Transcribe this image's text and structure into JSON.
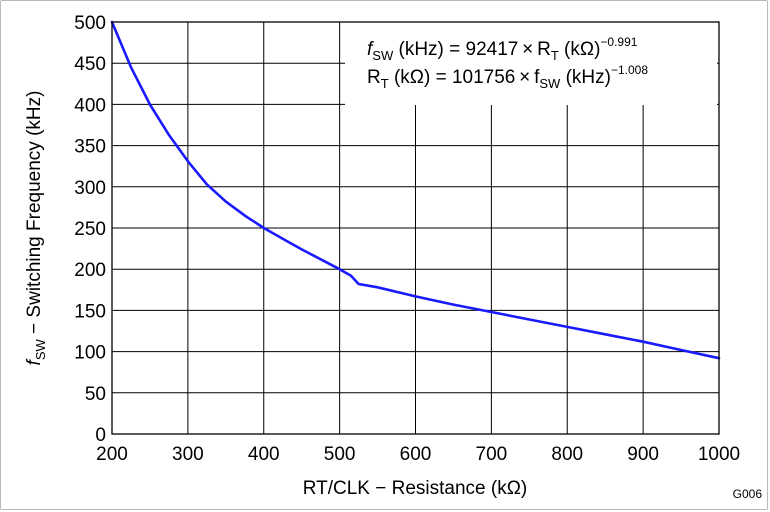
{
  "chart_data": {
    "type": "line",
    "title": "",
    "xlabel": "RT/CLK − Resistance (kΩ)",
    "ylabel_italic": "f",
    "ylabel_sub": "SW",
    "ylabel_rest": " − Switching Frequency (kHz)",
    "xlim": [
      200,
      1000
    ],
    "ylim": [
      0,
      500
    ],
    "xticks": [
      200,
      300,
      400,
      500,
      600,
      700,
      800,
      900,
      1000
    ],
    "yticks": [
      0,
      50,
      100,
      150,
      200,
      250,
      300,
      350,
      400,
      450,
      500
    ],
    "grid": true,
    "series": [
      {
        "name": "fSW",
        "color": "#1a1aff",
        "x": [
          200,
          225,
          250,
          275,
          300,
          325,
          350,
          375,
          400,
          425,
          450,
          475,
          500,
          515,
          520,
          525,
          550,
          600,
          650,
          700,
          750,
          800,
          850,
          900,
          950,
          1000
        ],
        "y": [
          500,
          445,
          400,
          363,
          331,
          303,
          282,
          265,
          250,
          237,
          224,
          212,
          200,
          192,
          187,
          182,
          178,
          167,
          157,
          148,
          139,
          130,
          121,
          112,
          102,
          92
        ]
      }
    ],
    "annotation": {
      "line1": {
        "italic": "f",
        "sub": "SW",
        "text1": " (kHz) = 92417 × R",
        "sub2": "T",
        "text2": " (kΩ)",
        "sup": "−0.991"
      },
      "line2": {
        "text1": "R",
        "sub": "T",
        "text2": " (kΩ) = 101756 × f",
        "sub2": "SW",
        "text3": " (kHz)",
        "sup": "−1.008"
      }
    },
    "figure_id": "G006"
  }
}
